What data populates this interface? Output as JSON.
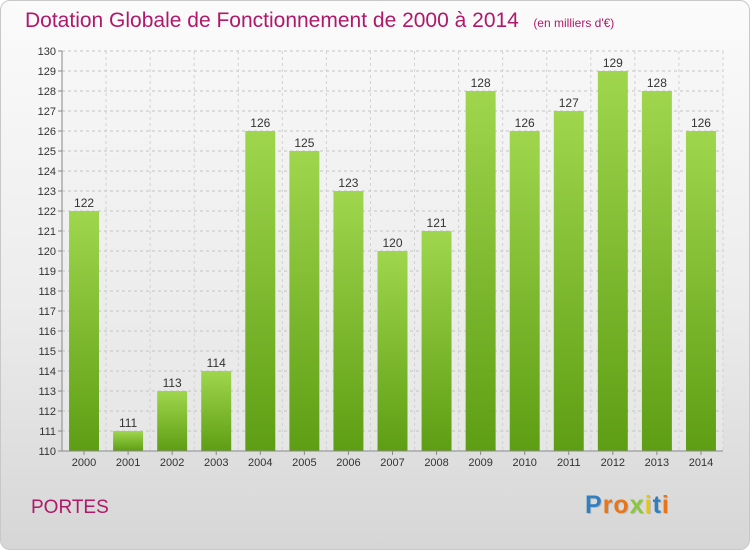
{
  "chart_data": {
    "type": "bar",
    "title": "Dotation Globale de Fonctionnement de 2000 à 2014",
    "subtitle": "(en milliers d'€)",
    "categories": [
      "2000",
      "2001",
      "2002",
      "2003",
      "2004",
      "2005",
      "2006",
      "2007",
      "2008",
      "2009",
      "2010",
      "2011",
      "2012",
      "2013",
      "2014"
    ],
    "values": [
      122,
      111,
      113,
      114,
      126,
      125,
      123,
      120,
      121,
      128,
      126,
      127,
      129,
      128,
      126
    ],
    "ylim": [
      110,
      130
    ],
    "yticks": [
      110,
      111,
      112,
      113,
      114,
      115,
      116,
      117,
      118,
      119,
      120,
      121,
      122,
      123,
      124,
      125,
      126,
      127,
      128,
      129,
      130
    ],
    "grid": true,
    "bar_color": "#7cc22e",
    "xlabel": "",
    "ylabel": ""
  },
  "footer": {
    "commune": "PORTES"
  },
  "logo": {
    "letters": [
      {
        "char": "P",
        "color": "#2f7fc1"
      },
      {
        "char": "r",
        "color": "#e8751a"
      },
      {
        "char": "o",
        "color": "#e8751a"
      },
      {
        "char": "x",
        "color": "#8cc63f"
      },
      {
        "char": "i",
        "color": "#e8c31a"
      },
      {
        "char": "t",
        "color": "#2f7fc1"
      },
      {
        "char": "i",
        "color": "#e8751a"
      }
    ]
  }
}
